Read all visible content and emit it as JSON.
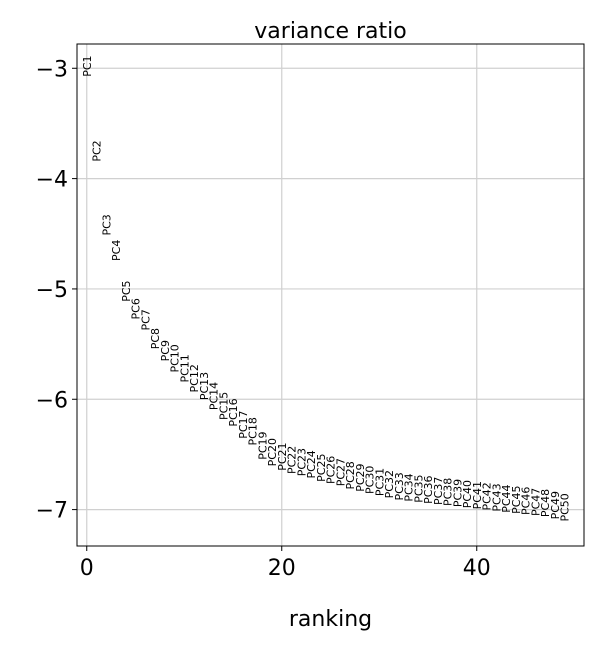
{
  "chart_data": {
    "type": "scatter",
    "title": "variance ratio",
    "xlabel": "ranking",
    "ylabel": "",
    "xlim": [
      -1,
      51
    ],
    "ylim": [
      -7.33,
      -2.78
    ],
    "xticks": [
      0,
      20,
      40
    ],
    "yticks": [
      -3,
      -4,
      -5,
      -6,
      -7
    ],
    "xtick_labels": [
      "0",
      "20",
      "40"
    ],
    "ytick_labels": [
      "−3",
      "−4",
      "−5",
      "−6",
      "−7"
    ],
    "grid": true,
    "point_labels": [
      "PC1",
      "PC2",
      "PC3",
      "PC4",
      "PC5",
      "PC6",
      "PC7",
      "PC8",
      "PC9",
      "PC10",
      "PC11",
      "PC12",
      "PC13",
      "PC14",
      "PC15",
      "PC16",
      "PC17",
      "PC18",
      "PC19",
      "PC20",
      "PC21",
      "PC22",
      "PC23",
      "PC24",
      "PC25",
      "PC26",
      "PC27",
      "PC28",
      "PC29",
      "PC30",
      "PC31",
      "PC32",
      "PC33",
      "PC34",
      "PC35",
      "PC36",
      "PC37",
      "PC38",
      "PC39",
      "PC40",
      "PC41",
      "PC42",
      "PC43",
      "PC44",
      "PC45",
      "PC46",
      "PC47",
      "PC48",
      "PC49",
      "PC50"
    ],
    "x": [
      0,
      1,
      2,
      3,
      4,
      5,
      6,
      7,
      8,
      9,
      10,
      11,
      12,
      13,
      14,
      15,
      16,
      17,
      18,
      19,
      20,
      21,
      22,
      23,
      24,
      25,
      26,
      27,
      28,
      29,
      30,
      31,
      32,
      33,
      34,
      35,
      36,
      37,
      38,
      39,
      40,
      41,
      42,
      43,
      44,
      45,
      46,
      47,
      48,
      49
    ],
    "y": [
      -2.98,
      -3.75,
      -4.42,
      -4.65,
      -5.02,
      -5.18,
      -5.28,
      -5.45,
      -5.56,
      -5.63,
      -5.72,
      -5.81,
      -5.88,
      -5.97,
      -6.06,
      -6.12,
      -6.23,
      -6.29,
      -6.42,
      -6.48,
      -6.52,
      -6.55,
      -6.57,
      -6.59,
      -6.62,
      -6.64,
      -6.66,
      -6.69,
      -6.71,
      -6.73,
      -6.75,
      -6.77,
      -6.79,
      -6.8,
      -6.81,
      -6.82,
      -6.83,
      -6.84,
      -6.85,
      -6.86,
      -6.87,
      -6.88,
      -6.89,
      -6.9,
      -6.91,
      -6.92,
      -6.93,
      -6.94,
      -6.96,
      -6.98
    ]
  }
}
